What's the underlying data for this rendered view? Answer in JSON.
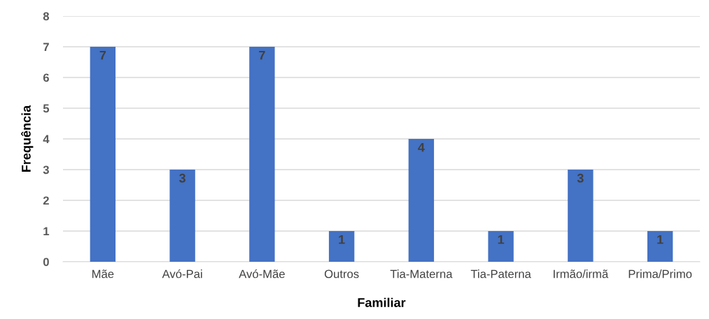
{
  "chart_data": {
    "type": "bar",
    "xlabel": "Familiar",
    "ylabel": "Frequência",
    "categories": [
      "Mãe",
      "Avó-Pai",
      "Avó-Mãe",
      "Outros",
      "Tia-Materna",
      "Tia-Paterna",
      "Irmão/irmã",
      "Prima/Primo"
    ],
    "values": [
      7,
      3,
      7,
      1,
      4,
      1,
      3,
      1
    ],
    "color": "#4472c4",
    "ylim": [
      0,
      8
    ],
    "yticks": [
      0,
      1,
      2,
      3,
      4,
      5,
      6,
      7,
      8
    ],
    "grid": "y",
    "data_labels": true
  }
}
